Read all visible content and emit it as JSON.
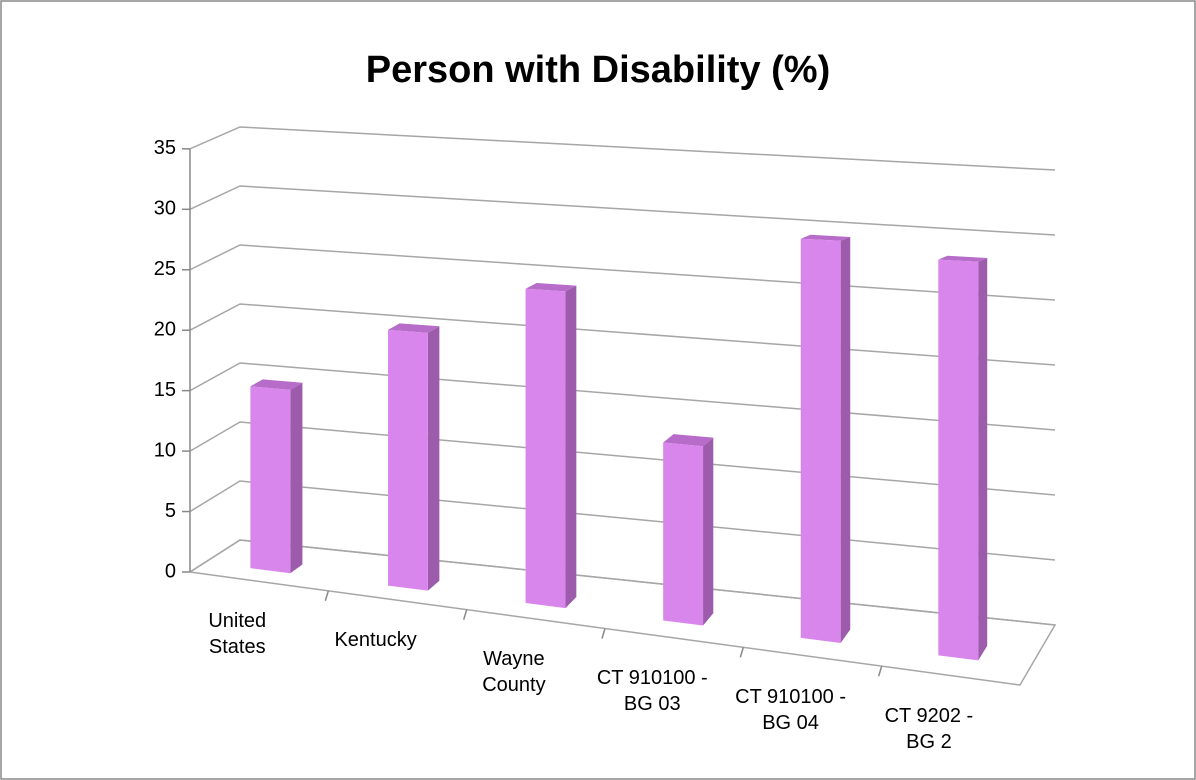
{
  "chart_data": {
    "type": "bar3d",
    "title": "Person with Disability (%)",
    "categories": [
      "United States",
      "Kentucky",
      "Wayne County",
      "CT 910100 - BG 03",
      "CT 910100 - BG 04",
      "CT 9202 - BG 2"
    ],
    "values": [
      15,
      20.5,
      24.5,
      13.5,
      29.5,
      28.5
    ],
    "color": "#d986ec",
    "ylim": [
      0,
      35
    ],
    "yticks": [
      0,
      5,
      10,
      15,
      20,
      25,
      30,
      35
    ],
    "grid": true
  }
}
